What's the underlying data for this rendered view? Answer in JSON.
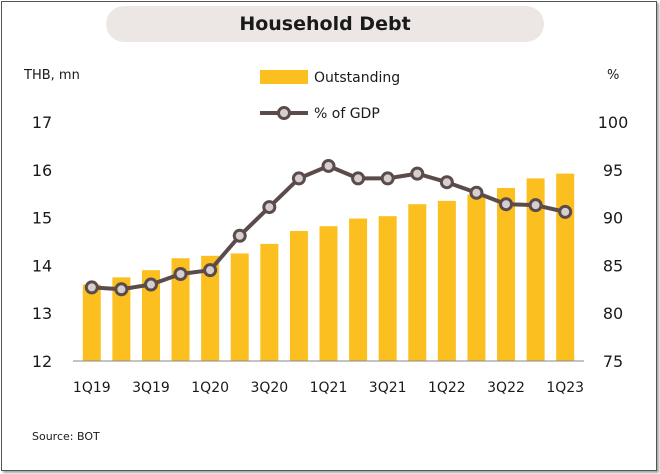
{
  "chart_data": {
    "type": "bar+line",
    "title": "Household Debt",
    "left_axis_label": "THB, mn",
    "right_axis_label": "%",
    "source": "Source: BOT",
    "legend": [
      "Outstanding",
      "% of GDP"
    ],
    "left_ylim": [
      12,
      17
    ],
    "left_ticks": [
      12,
      13,
      14,
      15,
      16,
      17
    ],
    "right_ylim": [
      75,
      100
    ],
    "right_ticks": [
      75,
      80,
      85,
      90,
      95,
      100
    ],
    "categories": [
      "1Q19",
      "2Q19",
      "3Q19",
      "4Q19",
      "1Q20",
      "2Q20",
      "3Q20",
      "4Q20",
      "1Q21",
      "2Q21",
      "3Q21",
      "4Q21",
      "1Q22",
      "2Q22",
      "3Q22",
      "4Q22",
      "1Q23"
    ],
    "x_tick_labels": [
      "1Q19",
      "3Q19",
      "1Q20",
      "3Q20",
      "1Q21",
      "3Q21",
      "1Q22",
      "3Q22",
      "1Q23"
    ],
    "series": [
      {
        "name": "Outstanding",
        "axis": "left",
        "type": "bar",
        "values": [
          13.6,
          13.75,
          13.9,
          14.15,
          14.2,
          14.25,
          14.45,
          14.72,
          14.82,
          14.98,
          15.03,
          15.28,
          15.35,
          15.48,
          15.62,
          15.82,
          15.92
        ]
      },
      {
        "name": "% of GDP",
        "axis": "right",
        "type": "line",
        "values": [
          82.7,
          82.5,
          83.0,
          84.1,
          84.5,
          88.1,
          91.1,
          94.1,
          95.4,
          94.1,
          94.1,
          94.6,
          93.7,
          92.6,
          91.4,
          91.3,
          90.6
        ]
      }
    ],
    "colors": {
      "bars": "#fbbf1f",
      "line": "#5b4b4b",
      "marker_fill": "#d6cfcf",
      "title_bg": "#ece7e4"
    }
  }
}
